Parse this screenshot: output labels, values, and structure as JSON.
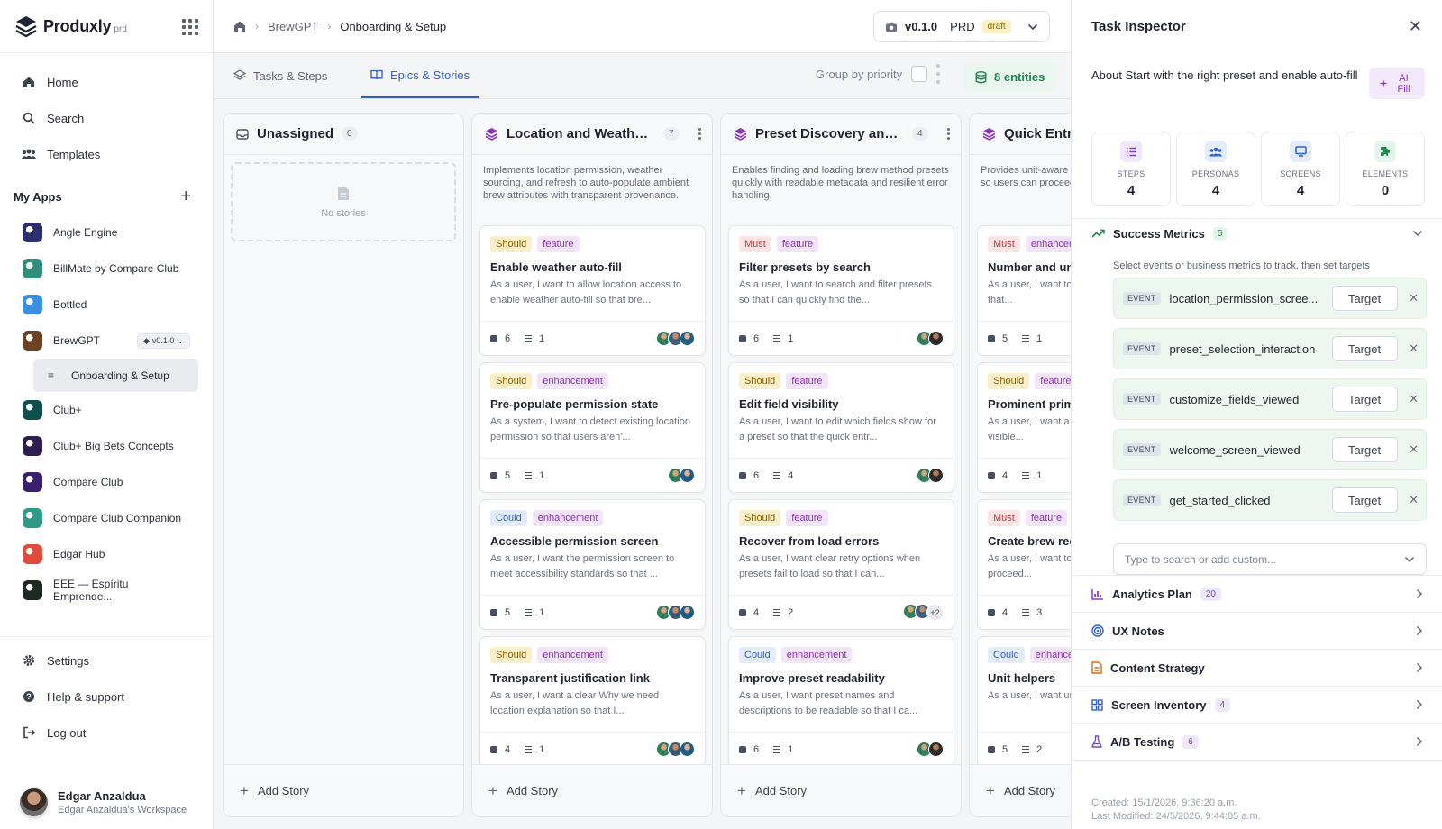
{
  "brand": {
    "name": "Produxly",
    "sub": "prd"
  },
  "nav": [
    {
      "label": "Home",
      "icon": "home-icon"
    },
    {
      "label": "Search",
      "icon": "search-icon"
    },
    {
      "label": "Templates",
      "icon": "users-icon"
    }
  ],
  "apps_title": "My Apps",
  "apps": [
    {
      "label": "Angle Engine",
      "color": "#2b2f6e"
    },
    {
      "label": "BillMate by Compare Club",
      "color": "#2f8d7a"
    },
    {
      "label": "Bottled",
      "color": "#3b8fe0"
    },
    {
      "label": "BrewGPT",
      "color": "#6b4226",
      "version": "v0.1.0"
    },
    {
      "label": "Club+",
      "color": "#0f4e4e"
    },
    {
      "label": "Club+ Big Bets Concepts",
      "color": "#2c1f4f"
    },
    {
      "label": "Compare Club",
      "color": "#3a1f6e"
    },
    {
      "label": "Compare Club Companion",
      "color": "#2f9a88"
    },
    {
      "label": "Edgar Hub",
      "color": "#e24b3b"
    },
    {
      "label": "EEE — Espíritu Emprende...",
      "color": "#1c2a22"
    }
  ],
  "active_sub": "Onboarding & Setup",
  "bottom_nav": [
    {
      "label": "Settings"
    },
    {
      "label": "Help & support"
    },
    {
      "label": "Log out"
    }
  ],
  "user": {
    "name": "Edgar Anzaldua",
    "workspace": "Edgar Anzaldua's Workspace"
  },
  "breadcrumb": {
    "app": "BrewGPT",
    "current": "Onboarding & Setup"
  },
  "version": {
    "number": "v0.1.0",
    "type": "PRD",
    "status": "draft"
  },
  "tabs": {
    "tasks": "Tasks & Steps",
    "epics": "Epics & Stories"
  },
  "group_by": "Group by priority",
  "entities": "8 entities",
  "add_story": "Add Story",
  "no_stories": "No stories",
  "columns": [
    {
      "title": "Unassigned",
      "count": "0",
      "description": "",
      "cards": []
    },
    {
      "title": "Location and Weather ...",
      "count": "7",
      "description": "Implements location permission, weather sourcing, and refresh to auto-populate ambient brew attributes with transparent provenance.",
      "cards": [
        {
          "priority": "Should",
          "type": "feature",
          "title": "Enable weather auto-fill",
          "desc": "As a user, I want to allow location access to enable weather auto-fill so that bre...",
          "tasks": "6",
          "steps": "1",
          "avatars": [
            "a",
            "b",
            "c"
          ]
        },
        {
          "priority": "Should",
          "type": "enhancement",
          "title": "Pre-populate permission state",
          "desc": "As a system, I want to detect existing location permission so that users aren'...",
          "tasks": "5",
          "steps": "1",
          "avatars": [
            "a",
            "c"
          ]
        },
        {
          "priority": "Could",
          "type": "enhancement",
          "title": "Accessible permission screen",
          "desc": "As a user, I want the permission screen to meet accessibility standards so that ...",
          "tasks": "5",
          "steps": "1",
          "avatars": [
            "a",
            "b",
            "c"
          ]
        },
        {
          "priority": "Should",
          "type": "enhancement",
          "title": "Transparent justification link",
          "desc": "As a user, I want a clear Why we need location explanation so that I...",
          "tasks": "4",
          "steps": "1",
          "avatars": [
            "a",
            "b",
            "c"
          ]
        }
      ]
    },
    {
      "title": "Preset Discovery and R...",
      "count": "4",
      "description": "Enables finding and loading brew method presets quickly with readable metadata and resilient error handling.",
      "cards": [
        {
          "priority": "Must",
          "type": "feature",
          "title": "Filter presets by search",
          "desc": "As a user, I want to search and filter presets so that I can quickly find the...",
          "tasks": "6",
          "steps": "1",
          "avatars": [
            "a",
            "d"
          ]
        },
        {
          "priority": "Should",
          "type": "feature",
          "title": "Edit field visibility",
          "desc": "As a user, I want to edit which fields show for a preset so that the quick entr...",
          "tasks": "6",
          "steps": "4",
          "avatars": [
            "a",
            "d"
          ]
        },
        {
          "priority": "Should",
          "type": "feature",
          "title": "Recover from load errors",
          "desc": "As a user, I want clear retry options when presets fail to load so that I can...",
          "tasks": "4",
          "steps": "2",
          "avatars": [
            "a",
            "b"
          ],
          "more": "+2"
        },
        {
          "priority": "Could",
          "type": "enhancement",
          "title": "Improve preset readability",
          "desc": "As a user, I want preset names and descriptions to be readable so that I ca...",
          "tasks": "6",
          "steps": "1",
          "avatars": [
            "a",
            "d"
          ]
        }
      ]
    },
    {
      "title": "Quick Entry",
      "count": "",
      "description": "Provides unit-aware accessibility of quick entry so users can proceed and persist...",
      "cards": [
        {
          "priority": "Must",
          "type": "enhancement",
          "title": "Number and unit entry",
          "desc": "As a user, I want to validate with units so that...",
          "tasks": "5",
          "steps": "1",
          "avatars": []
        },
        {
          "priority": "Should",
          "type": "feature",
          "title": "Prominent primary action",
          "desc": "As a user, I want a primary button to be visible...",
          "tasks": "4",
          "steps": "1",
          "avatars": []
        },
        {
          "priority": "Must",
          "type": "feature",
          "title": "Create brew record",
          "desc": "As a user, I want to create a brew when I proceed...",
          "tasks": "4",
          "steps": "3",
          "avatars": []
        },
        {
          "priority": "Could",
          "type": "enhancement",
          "title": "Unit helpers",
          "desc": "As a user, I want unit helpers so that...",
          "tasks": "5",
          "steps": "2",
          "avatars": []
        }
      ]
    }
  ],
  "inspector": {
    "title": "Task Inspector",
    "about": "About Start with the right preset and enable auto-fill",
    "ai_fill": "AI Fill",
    "stats": [
      {
        "label": "STEPS",
        "value": "4",
        "color": "#7a45c7",
        "bg": "#efe7fb"
      },
      {
        "label": "PERSONAS",
        "value": "4",
        "color": "#2f5fd0",
        "bg": "#e2ecfb"
      },
      {
        "label": "SCREENS",
        "value": "4",
        "color": "#2f5fd0",
        "bg": "#e2ecfb"
      },
      {
        "label": "ELEMENTS",
        "value": "0",
        "color": "#1f8a4c",
        "bg": "#e4f5ea"
      }
    ],
    "success": {
      "title": "Success Metrics",
      "count": "5",
      "subtitle": "Select events or business metrics to track, then set targets",
      "tag": "EVENT",
      "target": "Target",
      "metrics": [
        "location_permission_scree...",
        "preset_selection_interaction",
        "customize_fields_viewed",
        "welcome_screen_viewed",
        "get_started_clicked"
      ],
      "placeholder": "Type to search or add custom..."
    },
    "sections": [
      {
        "title": "Analytics Plan",
        "count": "20",
        "color": "#7a45c7"
      },
      {
        "title": "UX Notes",
        "count": "",
        "color": "#2f5fd0"
      },
      {
        "title": "Content Strategy",
        "count": "",
        "color": "#d96a1c"
      },
      {
        "title": "Screen Inventory",
        "count": "4",
        "color": "#2f5fd0"
      },
      {
        "title": "A/B Testing",
        "count": "6",
        "color": "#7a45c7"
      }
    ],
    "created": "Created: 15/1/2026, 9:36:20 a.m.",
    "modified": "Last Modified: 24/5/2026, 9:44:05 a.m."
  }
}
